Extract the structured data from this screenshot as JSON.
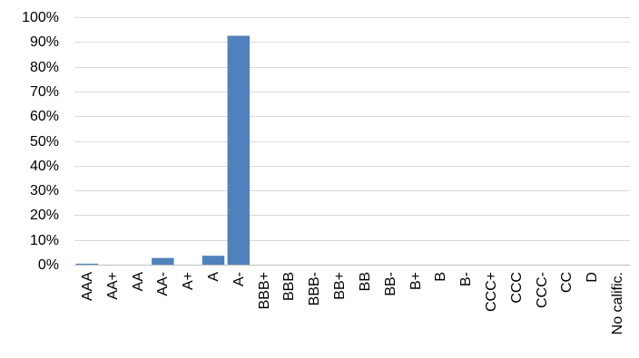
{
  "chart_data": {
    "type": "bar",
    "categories": [
      "AAA",
      "AA+",
      "AA",
      "AA-",
      "A+",
      "A",
      "A-",
      "BBB+",
      "BBB",
      "BBB-",
      "BB+",
      "BB",
      "BB-",
      "B+",
      "B",
      "B-",
      "CCC+",
      "CCC",
      "CCC-",
      "CC",
      "D",
      "No calific."
    ],
    "values": [
      0.4,
      0,
      0,
      2.7,
      0,
      3.6,
      92.5,
      0,
      0,
      0,
      0,
      0,
      0,
      0,
      0,
      0,
      0,
      0,
      0,
      0,
      0,
      0
    ],
    "y_unit": "%",
    "ylim": [
      0,
      100
    ],
    "y_ticks": [
      0,
      10,
      20,
      30,
      40,
      50,
      60,
      70,
      80,
      90,
      100
    ],
    "y_tick_labels": [
      "0%",
      "10%",
      "20%",
      "30%",
      "40%",
      "50%",
      "60%",
      "70%",
      "80%",
      "90%",
      "100%"
    ],
    "grid": true,
    "legend": "none",
    "bar_color": "#4f81bd",
    "title": "",
    "xlabel": "",
    "ylabel": ""
  }
}
